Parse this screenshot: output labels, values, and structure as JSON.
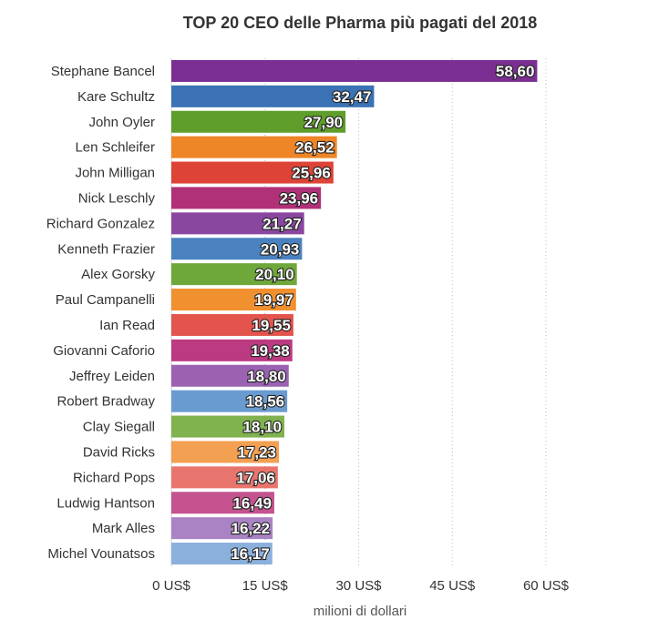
{
  "chart_data": {
    "type": "bar",
    "orientation": "horizontal",
    "title": "TOP 20 CEO delle Pharma più pagati del 2018",
    "xlabel": "milioni di dollari",
    "ylabel": "",
    "xlim": [
      0,
      60
    ],
    "x_ticks": [
      0,
      15,
      30,
      45,
      60
    ],
    "x_tick_labels": [
      "0 US$",
      "15 US$",
      "30 US$",
      "45 US$",
      "60 US$"
    ],
    "grid": "vertical dotted",
    "categories": [
      "Stephane Bancel",
      "Kare Schultz",
      "John Oyler",
      "Len Schleifer",
      "John Milligan",
      "Nick Leschly",
      "Richard Gonzalez",
      "Kenneth Frazier",
      "Alex Gorsky",
      "Paul Campanelli",
      "Ian Read",
      "Giovanni Caforio",
      "Jeffrey Leiden",
      "Robert Bradway",
      "Clay Siegall",
      "David Ricks",
      "Richard Pops",
      "Ludwig Hantson",
      "Mark Alles",
      "Michel Vounatsos"
    ],
    "values": [
      58.6,
      32.47,
      27.9,
      26.52,
      25.96,
      23.96,
      21.27,
      20.93,
      20.1,
      19.97,
      19.55,
      19.38,
      18.8,
      18.56,
      18.1,
      17.23,
      17.06,
      16.49,
      16.22,
      16.17
    ],
    "value_labels": [
      "58,60",
      "32,47",
      "27,90",
      "26,52",
      "25,96",
      "23,96",
      "21,27",
      "20,93",
      "20,10",
      "19,97",
      "19,55",
      "19,38",
      "18,80",
      "18,56",
      "18,10",
      "17,23",
      "17,06",
      "16,49",
      "16,22",
      "16,17"
    ],
    "colors": [
      "#7b2f92",
      "#3a72b5",
      "#5f9e2a",
      "#ee8526",
      "#dd4336",
      "#b03177",
      "#8a47a0",
      "#4a82c0",
      "#6fa83a",
      "#f0902f",
      "#e2544c",
      "#bb3a82",
      "#9b62b2",
      "#6a9bd0",
      "#80b24e",
      "#f3a052",
      "#e8756d",
      "#c4538f",
      "#a983c4",
      "#8cb0dc"
    ]
  }
}
